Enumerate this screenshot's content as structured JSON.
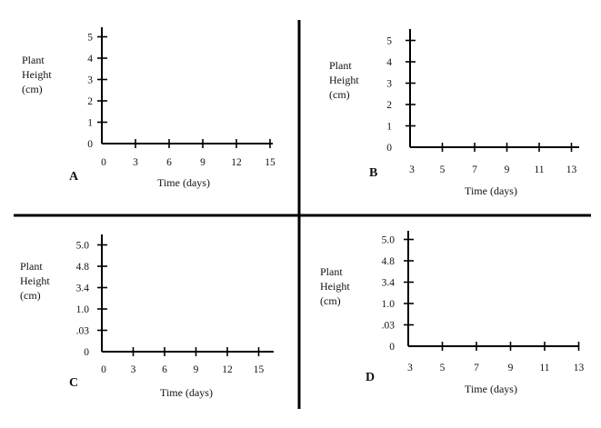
{
  "chart_data": [
    {
      "type": "line",
      "panel_label": "A",
      "xlabel": "Time (days)",
      "ylabel": [
        "Plant",
        "Height",
        "(cm)"
      ],
      "x_ticks": [
        "0",
        "3",
        "6",
        "9",
        "12",
        "15"
      ],
      "y_ticks": [
        "0",
        "1",
        "2",
        "3",
        "4",
        "5"
      ],
      "series": []
    },
    {
      "type": "line",
      "panel_label": "B",
      "xlabel": "Time (days)",
      "ylabel": [
        "Plant",
        "Height",
        "(cm)"
      ],
      "x_ticks": [
        "3",
        "5",
        "7",
        "9",
        "11",
        "13"
      ],
      "y_ticks": [
        "0",
        "1",
        "2",
        "3",
        "4",
        "5"
      ],
      "series": []
    },
    {
      "type": "line",
      "panel_label": "C",
      "xlabel": "Time (days)",
      "ylabel": [
        "Plant",
        "Height",
        "(cm)"
      ],
      "x_ticks": [
        "0",
        "3",
        "6",
        "9",
        "12",
        "15"
      ],
      "y_ticks": [
        "0",
        ".03",
        "1.0",
        "3.4",
        "4.8",
        "5.0"
      ],
      "series": []
    },
    {
      "type": "line",
      "panel_label": "D",
      "xlabel": "Time (days)",
      "ylabel": [
        "Plant",
        "Height",
        "(cm)"
      ],
      "x_ticks": [
        "3",
        "5",
        "7",
        "9",
        "11",
        "13"
      ],
      "y_ticks": [
        "0",
        ".03",
        "1.0",
        "3.4",
        "4.8",
        "5.0"
      ],
      "series": []
    }
  ]
}
